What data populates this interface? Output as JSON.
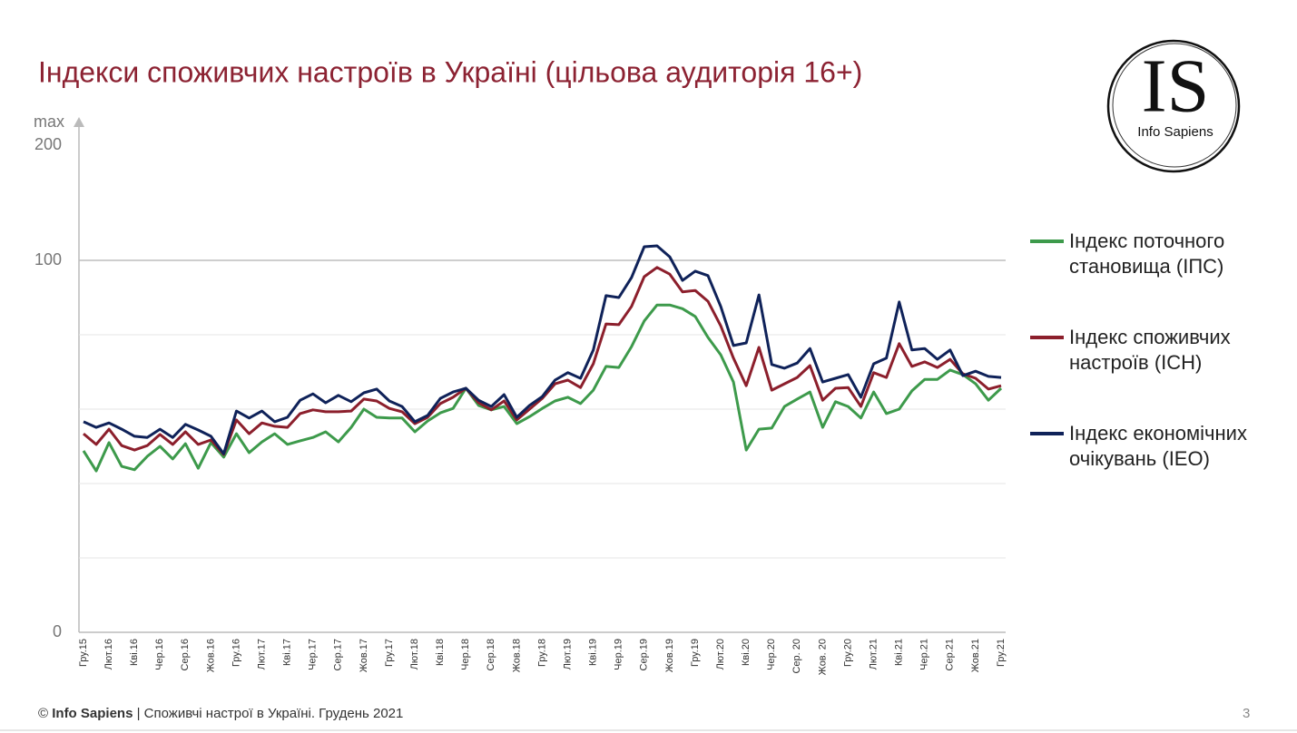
{
  "chart_data": {
    "type": "line",
    "title": "Індекси споживчих настроїв в Україні (цільова аудиторія 16+)",
    "ymax_label": "max",
    "y_scale": "piecewise",
    "ylim": [
      0,
      200
    ],
    "yticks": [
      0,
      100,
      200
    ],
    "grid": [
      20,
      40,
      60,
      80,
      100
    ],
    "categories": [
      "Гру.15",
      null,
      "Лют.16",
      null,
      "Кві.16",
      null,
      "Чер.16",
      null,
      "Сер.16",
      null,
      "Жов.16",
      null,
      "Гру.16",
      null,
      "Лют.17",
      null,
      "Кві.17",
      null,
      "Чер.17",
      null,
      "Сер.17",
      null,
      "Жов.17",
      null,
      "Гру.17",
      null,
      "Лют.18",
      null,
      "Кві.18",
      null,
      "Чер.18",
      null,
      "Сер.18",
      null,
      "Жов.18",
      null,
      "Гру.18",
      null,
      "Лют.19",
      null,
      "Кві.19",
      null,
      "Чер.19",
      null,
      "Сер.19",
      null,
      "Жов.19",
      null,
      "Гру.19",
      null,
      "Лют.20",
      null,
      "Кві.20",
      null,
      "Чер.20",
      null,
      "Сер. 20",
      null,
      "Жов. 20",
      null,
      "Гру.20",
      null,
      "Лют.21",
      null,
      "Кві.21",
      null,
      "Чер.21",
      null,
      "Сер.21",
      null,
      "Жов.21",
      null,
      "Гру.21"
    ],
    "series": [
      {
        "name": "Індекс поточного становища (ІПС)",
        "color": "#3d9a4b",
        "values": [
          48.8,
          43.4,
          51,
          44.6,
          43.7,
          47.3,
          50,
          46.6,
          50.7,
          44.1,
          51,
          47.1,
          53.4,
          48.3,
          51.2,
          53.4,
          50.5,
          51.5,
          52.4,
          53.9,
          51.2,
          55.1,
          60,
          57.8,
          57.6,
          57.6,
          53.9,
          56.8,
          59,
          60.2,
          65.6,
          61,
          59.8,
          60.7,
          56.1,
          58,
          60.2,
          62.2,
          63.2,
          61.5,
          65.1,
          71.5,
          71.2,
          76.8,
          83.7,
          88,
          88,
          87,
          84.9,
          79.3,
          74.6,
          67.3,
          49,
          54.6,
          54.9,
          60.7,
          62.7,
          64.6,
          55.1,
          62,
          60.7,
          57.6,
          64.6,
          58.8,
          60,
          64.9,
          68,
          68,
          70.5,
          69.3,
          66.8,
          62.4,
          65.6
        ]
      },
      {
        "name": "Індекс споживчих настроїв (ІСН)",
        "color": "#8c1f2c",
        "values": [
          53.4,
          50.5,
          54.6,
          50.2,
          49,
          50.2,
          53.2,
          50.5,
          53.9,
          50.5,
          51.7,
          47.8,
          57.1,
          53.4,
          56.3,
          55.4,
          55.1,
          58.8,
          59.8,
          59.3,
          59.3,
          59.5,
          62.7,
          62.2,
          60.2,
          59.3,
          56.1,
          57.8,
          61.5,
          63.2,
          65.6,
          61.7,
          59.8,
          62.2,
          57.1,
          60,
          62.9,
          66.8,
          67.8,
          65.8,
          72.2,
          82.9,
          82.7,
          87.6,
          95.6,
          98.1,
          96.3,
          91.5,
          91.9,
          89,
          82.4,
          73.7,
          66.3,
          76.6,
          65.1,
          66.8,
          68.5,
          71.7,
          62.4,
          65.6,
          65.8,
          60.7,
          69.8,
          68.5,
          77.6,
          71.5,
          72.7,
          71.2,
          73.4,
          69.5,
          68.3,
          65.4,
          66.3
        ]
      },
      {
        "name": "Індекс економічних очікувань (ІЕО)",
        "color": "#0f2259",
        "values": [
          56.6,
          55.1,
          56.3,
          54.6,
          52.7,
          52.4,
          54.6,
          52.4,
          55.9,
          54.4,
          52.7,
          48,
          59.5,
          57.6,
          59.5,
          56.6,
          57.8,
          62.4,
          64.1,
          61.7,
          63.7,
          62,
          64.4,
          65.4,
          62.2,
          60.7,
          56.6,
          58.3,
          62.9,
          64.6,
          65.6,
          62.4,
          60.7,
          63.9,
          57.8,
          61,
          63.4,
          67.8,
          69.8,
          68.3,
          75.9,
          90.5,
          90,
          95.4,
          111.8,
          112.6,
          103.1,
          94.6,
          97.1,
          95.9,
          87.6,
          77.1,
          77.8,
          90.7,
          72,
          71,
          72.4,
          76.3,
          67.3,
          68.3,
          69.3,
          63.2,
          72.2,
          73.7,
          88.8,
          75.9,
          76.3,
          73.4,
          75.9,
          69,
          70.2,
          68.8,
          68.5
        ]
      }
    ]
  },
  "logo": {
    "mark": "IS",
    "name": "Info Sapiens"
  },
  "footer": {
    "copyright": "©",
    "brand": "Info Sapiens",
    "text": "| Споживчі настрої в Україні. Грудень 2021"
  },
  "page_number": "3"
}
